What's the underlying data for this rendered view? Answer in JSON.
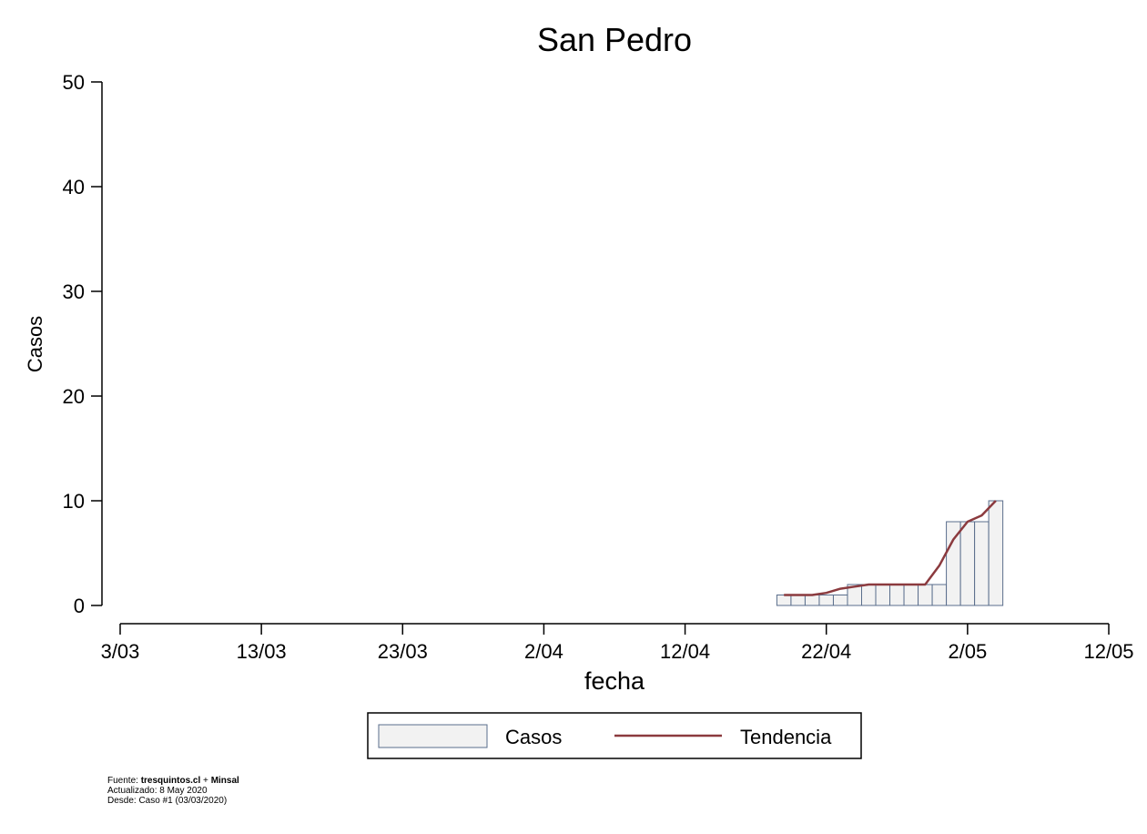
{
  "chart_data": {
    "type": "bar",
    "title": "San Pedro",
    "xlabel": "fecha",
    "ylabel": "Casos",
    "ylim": [
      0,
      50
    ],
    "yticks": [
      0,
      10,
      20,
      30,
      40,
      50
    ],
    "x_range": [
      "2020-03-03",
      "2020-05-12"
    ],
    "x_ticks": [
      {
        "date": "2020-03-03",
        "label": "3/03"
      },
      {
        "date": "2020-03-13",
        "label": "13/03"
      },
      {
        "date": "2020-03-23",
        "label": "23/03"
      },
      {
        "date": "2020-04-02",
        "label": "2/04"
      },
      {
        "date": "2020-04-12",
        "label": "12/04"
      },
      {
        "date": "2020-04-22",
        "label": "22/04"
      },
      {
        "date": "2020-05-02",
        "label": "2/05"
      },
      {
        "date": "2020-05-12",
        "label": "12/05"
      }
    ],
    "grid": false,
    "legend_position": "bottom",
    "series": [
      {
        "name": "Casos",
        "kind": "bar",
        "color": "#f2f2f2",
        "edge_color": "#5a6e8c",
        "points": [
          {
            "x": "2020-04-19",
            "y": 1
          },
          {
            "x": "2020-04-20",
            "y": 1
          },
          {
            "x": "2020-04-21",
            "y": 1
          },
          {
            "x": "2020-04-22",
            "y": 1
          },
          {
            "x": "2020-04-23",
            "y": 1
          },
          {
            "x": "2020-04-24",
            "y": 2
          },
          {
            "x": "2020-04-25",
            "y": 2
          },
          {
            "x": "2020-04-26",
            "y": 2
          },
          {
            "x": "2020-04-27",
            "y": 2
          },
          {
            "x": "2020-04-28",
            "y": 2
          },
          {
            "x": "2020-04-29",
            "y": 2
          },
          {
            "x": "2020-04-30",
            "y": 2
          },
          {
            "x": "2020-05-01",
            "y": 8
          },
          {
            "x": "2020-05-02",
            "y": 8
          },
          {
            "x": "2020-05-03",
            "y": 8
          },
          {
            "x": "2020-05-04",
            "y": 10
          }
        ]
      },
      {
        "name": "Tendencia",
        "kind": "line",
        "color": "#8b3a3e",
        "points": [
          {
            "x": "2020-04-19",
            "y": 1
          },
          {
            "x": "2020-04-20",
            "y": 1
          },
          {
            "x": "2020-04-21",
            "y": 1
          },
          {
            "x": "2020-04-22",
            "y": 1.2
          },
          {
            "x": "2020-04-23",
            "y": 1.6
          },
          {
            "x": "2020-04-24",
            "y": 1.8
          },
          {
            "x": "2020-04-25",
            "y": 2
          },
          {
            "x": "2020-04-26",
            "y": 2
          },
          {
            "x": "2020-04-27",
            "y": 2
          },
          {
            "x": "2020-04-28",
            "y": 2
          },
          {
            "x": "2020-04-29",
            "y": 2
          },
          {
            "x": "2020-04-30",
            "y": 3.8
          },
          {
            "x": "2020-05-01",
            "y": 6.3
          },
          {
            "x": "2020-05-02",
            "y": 8
          },
          {
            "x": "2020-05-03",
            "y": 8.6
          },
          {
            "x": "2020-05-04",
            "y": 10
          }
        ]
      }
    ]
  },
  "footer": {
    "source_prefix": "Fuente: ",
    "source_site": "tresquintos.cl",
    "source_join": " + ",
    "source_org": "Minsal",
    "updated": "Actualizado: 8 May 2020",
    "since": "Desde: Caso #1  (03/03/2020)"
  }
}
